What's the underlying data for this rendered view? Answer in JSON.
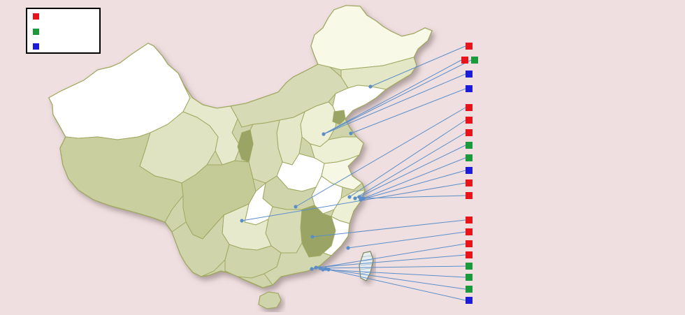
{
  "colors": {
    "background": "#efdfe0",
    "red": "#e8141c",
    "green": "#1a9a3a",
    "blue": "#1b1bd8",
    "leader_line": "#5b8ec9",
    "map_fill": "#cfd4ab",
    "map_fill_light": "#f6f7e4",
    "map_fill_white": "#ffffff",
    "map_fill_dark": "#9aa565",
    "map_border": "#a0a860"
  },
  "legend": {
    "items": [
      {
        "color": "red",
        "label": ""
      },
      {
        "color": "green",
        "label": ""
      },
      {
        "color": "blue",
        "label": ""
      }
    ]
  },
  "markers": [
    {
      "color": "red",
      "group": "liaoning"
    },
    {
      "color": "red",
      "group": "tianjin"
    },
    {
      "color": "green",
      "group": "tianjin"
    },
    {
      "color": "blue",
      "group": "tianjin"
    },
    {
      "color": "blue",
      "group": "shandong"
    },
    {
      "color": "red",
      "group": "hubei"
    },
    {
      "color": "red",
      "group": "shanghai"
    },
    {
      "color": "red",
      "group": "shanghai"
    },
    {
      "color": "green",
      "group": "shanghai"
    },
    {
      "color": "green",
      "group": "shanghai"
    },
    {
      "color": "blue",
      "group": "shanghai"
    },
    {
      "color": "red",
      "group": "chongqing"
    },
    {
      "color": "red",
      "group": "zhejiang"
    },
    {
      "color": "red",
      "group": "jiangxi"
    },
    {
      "color": "red",
      "group": "fujian"
    },
    {
      "color": "red",
      "group": "guangdong"
    },
    {
      "color": "red",
      "group": "guangdong"
    },
    {
      "color": "green",
      "group": "guangdong"
    },
    {
      "color": "green",
      "group": "guangdong"
    },
    {
      "color": "green",
      "group": "guangdong"
    },
    {
      "color": "blue",
      "group": "guangdong"
    }
  ]
}
